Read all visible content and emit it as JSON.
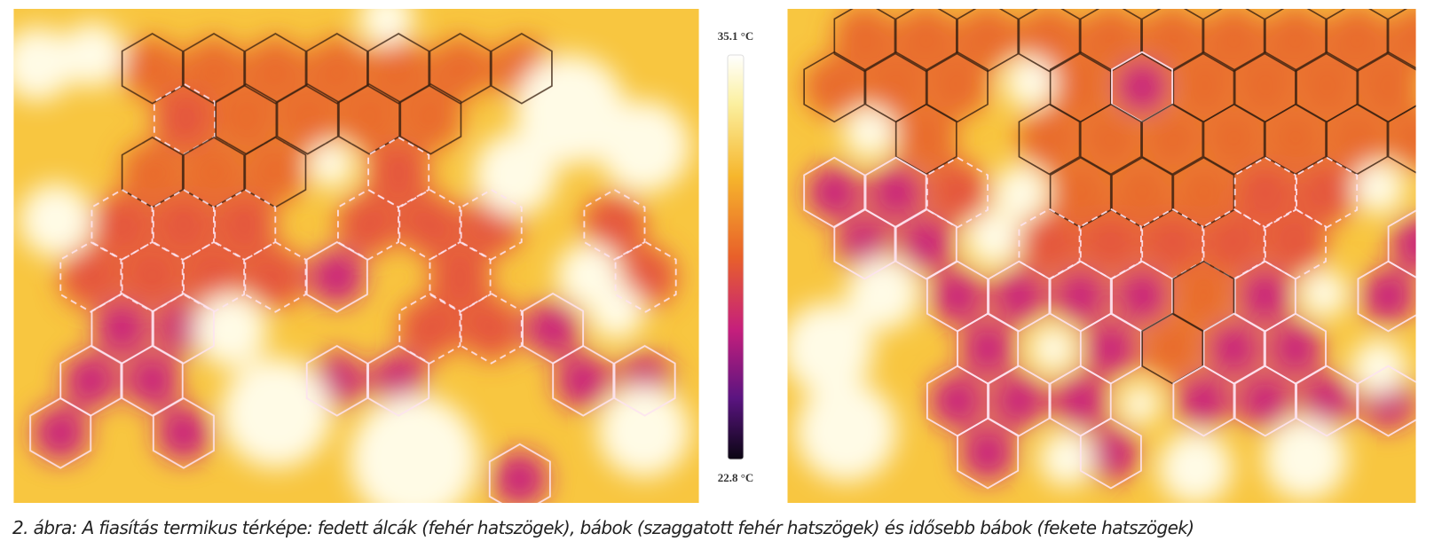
{
  "figure": {
    "colorbar": {
      "max_label": "35.1 °C",
      "min_label": "22.8 °C"
    },
    "caption": "2. ábra: A fiasítás termikus térképe: fedett álcák (fehér hatszögek), bábok (szaggatott fehér hatszögek) és idősebb bábok (fekete hatszögek)"
  }
}
